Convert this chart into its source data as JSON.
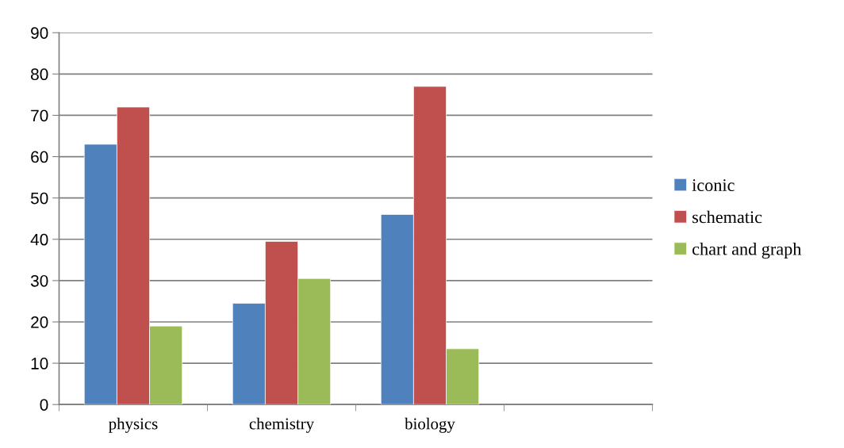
{
  "chart_data": {
    "type": "bar",
    "categories": [
      "physics",
      "chemistry",
      "biology",
      null
    ],
    "series": [
      {
        "name": "iconic",
        "color": "#4f81bd",
        "values": [
          63,
          24.5,
          46,
          null
        ]
      },
      {
        "name": "schematic",
        "color": "#c0504d",
        "values": [
          72,
          39.5,
          77,
          null
        ]
      },
      {
        "name": "chart and graph",
        "color": "#9bbb59",
        "values": [
          19,
          30.5,
          13.5,
          null
        ]
      }
    ],
    "ylim": [
      0,
      90
    ],
    "yticks": [
      0,
      10,
      20,
      30,
      40,
      50,
      60,
      70,
      80,
      90
    ],
    "grid": "y",
    "legend": "right"
  }
}
